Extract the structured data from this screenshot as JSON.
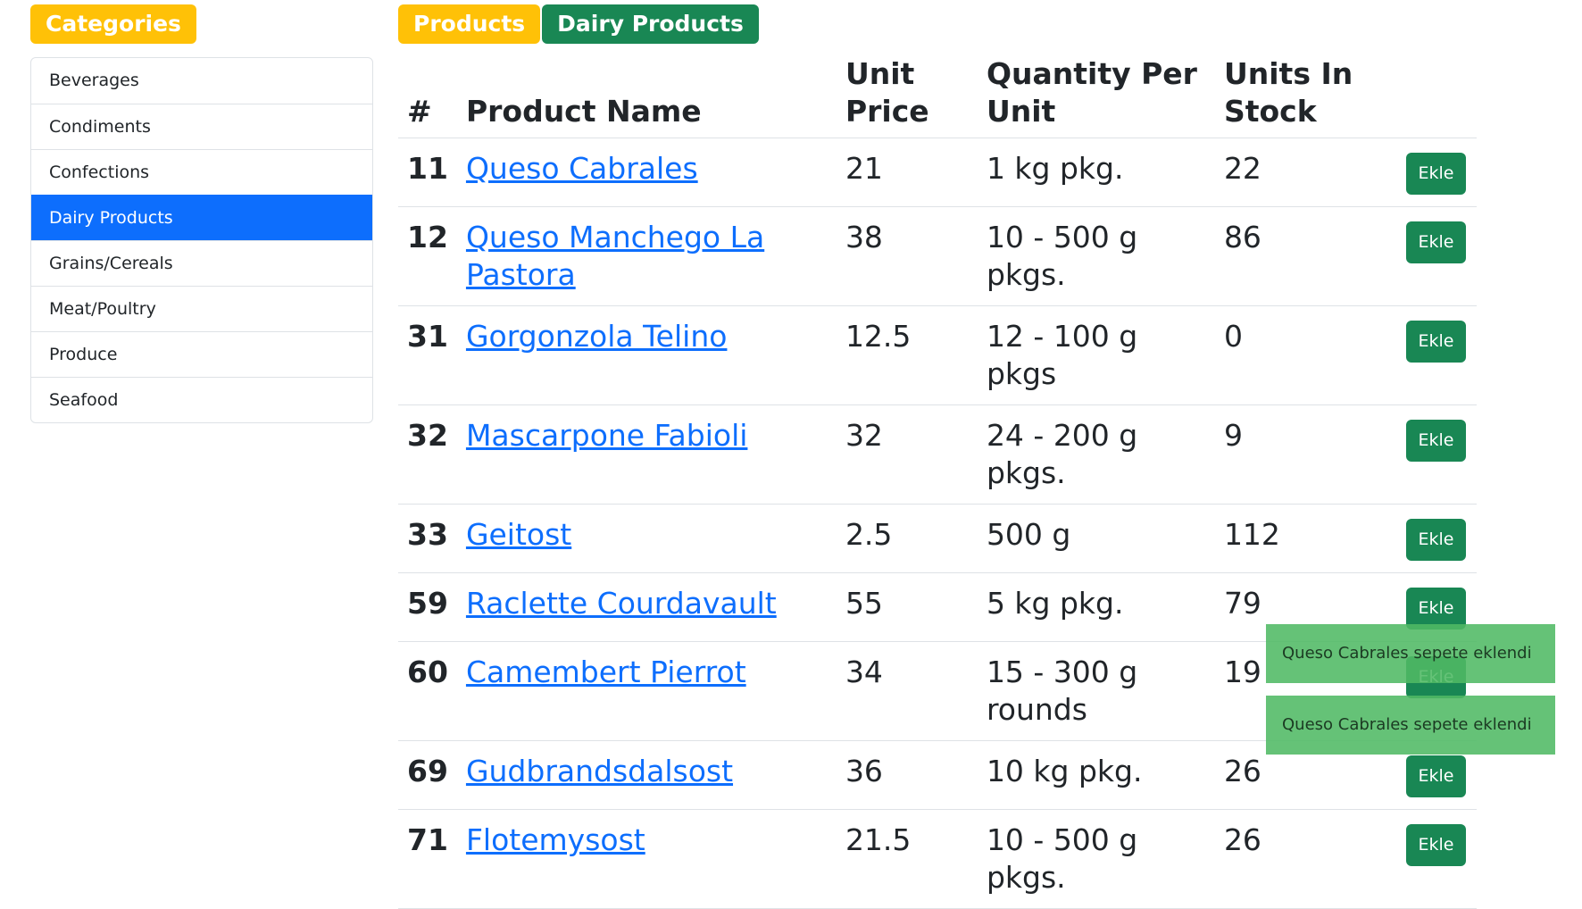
{
  "sidebar": {
    "title": "Categories",
    "items": [
      {
        "label": "Beverages"
      },
      {
        "label": "Condiments"
      },
      {
        "label": "Confections"
      },
      {
        "label": "Dairy Products"
      },
      {
        "label": "Grains/Cereals"
      },
      {
        "label": "Meat/Poultry"
      },
      {
        "label": "Produce"
      },
      {
        "label": "Seafood"
      }
    ],
    "active_item": "Dairy Products"
  },
  "header": {
    "section_label": "Products",
    "category_label": "Dairy Products"
  },
  "table": {
    "columns": [
      "#",
      "Product Name",
      "Unit Price",
      "Quantity Per Unit",
      "Units In Stock"
    ],
    "add_button_label": "Ekle",
    "rows": [
      {
        "id": "11",
        "name": "Queso Cabrales",
        "price": "21",
        "qty": "1 kg pkg.",
        "stock": "22"
      },
      {
        "id": "12",
        "name": "Queso Manchego La Pastora",
        "price": "38",
        "qty": "10 - 500 g pkgs.",
        "stock": "86"
      },
      {
        "id": "31",
        "name": "Gorgonzola Telino",
        "price": "12.5",
        "qty": "12 - 100 g pkgs",
        "stock": "0"
      },
      {
        "id": "32",
        "name": "Mascarpone Fabioli",
        "price": "32",
        "qty": "24 - 200 g pkgs.",
        "stock": "9"
      },
      {
        "id": "33",
        "name": "Geitost",
        "price": "2.5",
        "qty": "500 g",
        "stock": "112"
      },
      {
        "id": "59",
        "name": "Raclette Courdavault",
        "price": "55",
        "qty": "5 kg pkg.",
        "stock": "79"
      },
      {
        "id": "60",
        "name": "Camembert Pierrot",
        "price": "34",
        "qty": "15 - 300 g rounds",
        "stock": "19"
      },
      {
        "id": "69",
        "name": "Gudbrandsdalsost",
        "price": "36",
        "qty": "10 kg pkg.",
        "stock": "26"
      },
      {
        "id": "71",
        "name": "Flotemysost",
        "price": "21.5",
        "qty": "10 - 500 g pkgs.",
        "stock": "26"
      }
    ]
  },
  "toasts": [
    {
      "message": "Queso Cabrales sepete eklendi"
    },
    {
      "message": "Queso Cabrales sepete eklendi"
    }
  ],
  "colors": {
    "primary": "#0d6efd",
    "success": "#198754",
    "warning": "#ffc107",
    "toast": "#5cbf6a"
  }
}
